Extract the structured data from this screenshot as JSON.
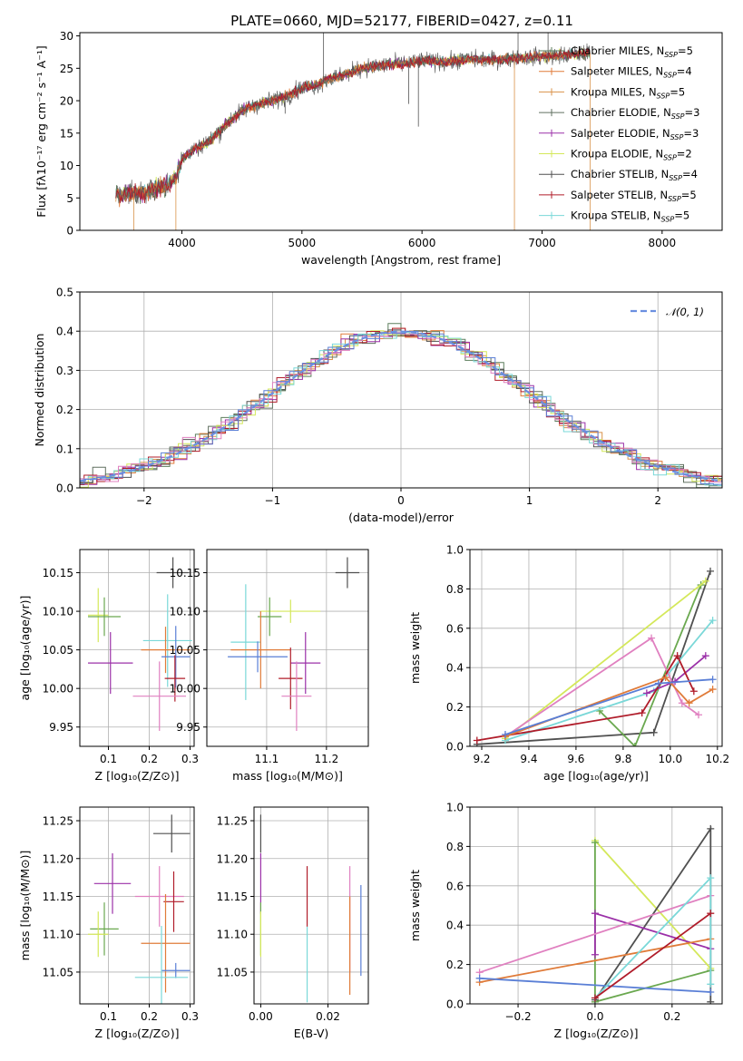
{
  "figure_title": "PLATE=0660, MJD=52177, FIBERID=0427, z=0.11",
  "colors": {
    "chabrier_miles": "#5d7f5d",
    "salpeter_miles": "#e07b39",
    "kroupa_miles": "#d9924a",
    "chabrier_elodie": "#607060",
    "salpeter_elodie": "#9b30a8",
    "kroupa_elodie": "#d4e85a",
    "chabrier_stelib": "#505050",
    "salpeter_stelib": "#b01c2a",
    "kroupa_stelib": "#7ad8d8",
    "pink": "#e080c0",
    "blue": "#5a7fd6",
    "green": "#6aa84f",
    "normal": "#6a8fe0"
  },
  "chart_data": [
    {
      "id": "spectrum",
      "type": "line",
      "title": "PLATE=0660, MJD=52177, FIBERID=0427, z=0.11",
      "xlabel": "wavelength [Angstrom, rest frame]",
      "ylabel": "Flux [fλ10⁻¹⁷ erg cm⁻² s⁻¹ A⁻¹]",
      "xlim": [
        3150,
        8500
      ],
      "ylim": [
        0,
        30.5
      ],
      "xticks": [
        4000,
        5000,
        6000,
        7000,
        8000
      ],
      "yticks": [
        0,
        5,
        10,
        15,
        20,
        25,
        30
      ],
      "legend_position": "right",
      "continuum": [
        [
          3450,
          5.6
        ],
        [
          3700,
          5.8
        ],
        [
          3850,
          6.8
        ],
        [
          3950,
          8
        ],
        [
          4000,
          11
        ],
        [
          4100,
          12.5
        ],
        [
          4250,
          14
        ],
        [
          4400,
          17
        ],
        [
          4550,
          19
        ],
        [
          4700,
          19.8
        ],
        [
          4850,
          20.5
        ],
        [
          5000,
          22
        ],
        [
          5100,
          22.2
        ],
        [
          5200,
          23.2
        ],
        [
          5350,
          24
        ],
        [
          5500,
          25
        ],
        [
          5700,
          25.5
        ],
        [
          5900,
          25.8
        ],
        [
          6000,
          26.2
        ],
        [
          6200,
          26
        ],
        [
          6400,
          26.4
        ],
        [
          6600,
          26.3
        ],
        [
          6800,
          26.6
        ],
        [
          7000,
          26.8
        ],
        [
          7200,
          27
        ],
        [
          7400,
          27.4
        ]
      ],
      "spikes": [
        [
          5180,
          30.5
        ],
        [
          6800,
          30.5
        ],
        [
          7050,
          30.5
        ],
        [
          6770,
          0
        ],
        [
          7400,
          0
        ],
        [
          5970,
          16
        ],
        [
          5890,
          19.5
        ],
        [
          4340,
          15
        ],
        [
          3950,
          0
        ],
        [
          3600,
          0
        ],
        [
          4200,
          14.5
        ],
        [
          4860,
          18
        ]
      ],
      "series": [
        {
          "name": "Chabrier MILES, N",
          "sub": "SSP",
          "suffix": "=5",
          "color_key": "chabrier_miles"
        },
        {
          "name": "Salpeter MILES, N",
          "sub": "SSP",
          "suffix": "=4",
          "color_key": "salpeter_miles"
        },
        {
          "name": "Kroupa MILES, N",
          "sub": "SSP",
          "suffix": "=5",
          "color_key": "kroupa_miles"
        },
        {
          "name": "Chabrier ELODIE, N",
          "sub": "SSP",
          "suffix": "=3",
          "color_key": "chabrier_elodie"
        },
        {
          "name": "Salpeter ELODIE, N",
          "sub": "SSP",
          "suffix": "=3",
          "color_key": "salpeter_elodie"
        },
        {
          "name": "Kroupa ELODIE, N",
          "sub": "SSP",
          "suffix": "=2",
          "color_key": "kroupa_elodie"
        },
        {
          "name": "Chabrier STELIB, N",
          "sub": "SSP",
          "suffix": "=4",
          "color_key": "chabrier_stelib"
        },
        {
          "name": "Salpeter STELIB, N",
          "sub": "SSP",
          "suffix": "=5",
          "color_key": "salpeter_stelib"
        },
        {
          "name": "Kroupa STELIB, N",
          "sub": "SSP",
          "suffix": "=5",
          "color_key": "kroupa_stelib"
        }
      ]
    },
    {
      "id": "residuals",
      "type": "line",
      "xlabel": "(data-model)/error",
      "ylabel": "Normed distribution",
      "xlim": [
        -2.5,
        2.5
      ],
      "ylim": [
        0,
        0.5
      ],
      "xticks": [
        -2,
        -1,
        0,
        1,
        2
      ],
      "yticks": [
        0.0,
        0.1,
        0.2,
        0.3,
        0.4,
        0.5
      ],
      "grid": true,
      "legend_position": "top-right",
      "legend_label": "𝒩(0, 1)",
      "bin_width": 0.1
    },
    {
      "id": "age_vs_Z",
      "type": "scatter",
      "xlabel": "Z [log₁₀(Z/Z⊙)]",
      "ylabel": "age  [log₁₀(age/yr)]",
      "xlim": [
        0.03,
        0.31
      ],
      "ylim": [
        9.925,
        10.18
      ],
      "xticks": [
        0.1,
        0.2,
        0.3
      ],
      "yticks": [
        9.95,
        10.0,
        10.05,
        10.1,
        10.15
      ],
      "grid": true,
      "points": [
        {
          "x": 0.258,
          "y": 10.15,
          "xerr": 0.04,
          "yerr": 0.02,
          "color_key": "chabrier_stelib"
        },
        {
          "x": 0.075,
          "y": 10.095,
          "xerr": 0.025,
          "yerr": 0.035,
          "color_key": "kroupa_elodie"
        },
        {
          "x": 0.09,
          "y": 10.093,
          "xerr": 0.04,
          "yerr": 0.025,
          "color_key": "green"
        },
        {
          "x": 0.105,
          "y": 10.033,
          "xerr": 0.055,
          "yerr": 0.04,
          "color_key": "salpeter_elodie"
        },
        {
          "x": 0.245,
          "y": 10.062,
          "xerr": 0.06,
          "yerr": 0.06,
          "color_key": "kroupa_stelib"
        },
        {
          "x": 0.24,
          "y": 10.05,
          "xerr": 0.06,
          "yerr": 0.03,
          "color_key": "salpeter_miles"
        },
        {
          "x": 0.265,
          "y": 10.041,
          "xerr": 0.035,
          "yerr": 0.04,
          "color_key": "blue"
        },
        {
          "x": 0.263,
          "y": 10.013,
          "xerr": 0.025,
          "yerr": 0.03,
          "color_key": "salpeter_stelib"
        },
        {
          "x": 0.225,
          "y": 9.99,
          "xerr": 0.065,
          "yerr": 0.045,
          "color_key": "pink"
        }
      ]
    },
    {
      "id": "age_vs_mass",
      "type": "scatter",
      "xlabel": "mass [log₁₀(M/M⊙)]",
      "ylabel": "",
      "xlim": [
        11.0,
        11.27
      ],
      "ylim": [
        9.925,
        10.18
      ],
      "xticks": [
        11.1,
        11.2
      ],
      "yticks": [
        9.95,
        10.0,
        10.05,
        10.1,
        10.15
      ],
      "grid": true,
      "points": [
        {
          "x": 11.235,
          "y": 10.15,
          "xerr": 0.02,
          "yerr": 0.02,
          "color_key": "chabrier_stelib"
        },
        {
          "x": 11.14,
          "y": 10.1,
          "xerr": 0.05,
          "yerr": 0.015,
          "color_key": "kroupa_elodie"
        },
        {
          "x": 11.105,
          "y": 10.093,
          "xerr": 0.02,
          "yerr": 0.025,
          "color_key": "green"
        },
        {
          "x": 11.065,
          "y": 10.06,
          "xerr": 0.025,
          "yerr": 0.075,
          "color_key": "kroupa_stelib"
        },
        {
          "x": 11.09,
          "y": 10.05,
          "xerr": 0.05,
          "yerr": 0.05,
          "color_key": "salpeter_miles"
        },
        {
          "x": 11.085,
          "y": 10.041,
          "xerr": 0.05,
          "yerr": 0.02,
          "color_key": "blue"
        },
        {
          "x": 11.165,
          "y": 10.033,
          "xerr": 0.025,
          "yerr": 0.04,
          "color_key": "salpeter_elodie"
        },
        {
          "x": 11.14,
          "y": 10.013,
          "xerr": 0.02,
          "yerr": 0.04,
          "color_key": "salpeter_stelib"
        },
        {
          "x": 11.15,
          "y": 9.99,
          "xerr": 0.025,
          "yerr": 0.045,
          "color_key": "pink"
        }
      ]
    },
    {
      "id": "weight_vs_age",
      "type": "line",
      "xlabel": "age  [log₁₀(age/yr)]",
      "ylabel": "mass weight",
      "xlim": [
        9.15,
        10.22
      ],
      "ylim": [
        0,
        1.0
      ],
      "xticks": [
        9.2,
        9.4,
        9.6,
        9.8,
        10.0,
        10.2
      ],
      "yticks": [
        0.0,
        0.2,
        0.4,
        0.6,
        0.8,
        1.0
      ],
      "grid": true,
      "series": [
        {
          "color_key": "chabrier_stelib",
          "x": [
            9.18,
            9.93,
            10.17
          ],
          "y": [
            0.01,
            0.07,
            0.89
          ]
        },
        {
          "color_key": "green",
          "x": [
            9.7,
            9.85,
            10.13
          ],
          "y": [
            0.18,
            0.0,
            0.82
          ]
        },
        {
          "color_key": "kroupa_elodie",
          "x": [
            9.3,
            10.15
          ],
          "y": [
            0.04,
            0.84
          ]
        },
        {
          "color_key": "kroupa_stelib",
          "x": [
            9.3,
            9.93,
            10.18
          ],
          "y": [
            0.03,
            0.28,
            0.64
          ]
        },
        {
          "color_key": "pink",
          "x": [
            9.3,
            9.92,
            10.05,
            10.12
          ],
          "y": [
            0.05,
            0.55,
            0.22,
            0.16
          ]
        },
        {
          "color_key": "salpeter_elodie",
          "x": [
            9.9,
            10.02,
            10.15
          ],
          "y": [
            0.27,
            0.33,
            0.46
          ]
        },
        {
          "color_key": "salpeter_stelib",
          "x": [
            9.18,
            9.88,
            10.03,
            10.1
          ],
          "y": [
            0.03,
            0.17,
            0.46,
            0.28
          ]
        },
        {
          "color_key": "salpeter_miles",
          "x": [
            9.3,
            9.98,
            10.08,
            10.18
          ],
          "y": [
            0.05,
            0.35,
            0.22,
            0.29
          ]
        },
        {
          "color_key": "blue",
          "x": [
            9.3,
            9.95,
            10.18
          ],
          "y": [
            0.06,
            0.32,
            0.34
          ]
        }
      ]
    },
    {
      "id": "mass_vs_Z",
      "type": "scatter",
      "xlabel": "Z [log₁₀(Z/Z⊙)]",
      "ylabel": "mass [log₁₀(M/M⊙)]",
      "xlim": [
        0.03,
        0.31
      ],
      "ylim": [
        11.008,
        11.268
      ],
      "xticks": [
        0.1,
        0.2,
        0.3
      ],
      "yticks": [
        11.05,
        11.1,
        11.15,
        11.2,
        11.25
      ],
      "grid": true,
      "points": [
        {
          "x": 0.255,
          "y": 11.233,
          "xerr": 0.045,
          "yerr": 0.025,
          "color_key": "chabrier_stelib"
        },
        {
          "x": 0.11,
          "y": 11.167,
          "xerr": 0.045,
          "yerr": 0.04,
          "color_key": "salpeter_elodie"
        },
        {
          "x": 0.09,
          "y": 11.107,
          "xerr": 0.035,
          "yerr": 0.035,
          "color_key": "green"
        },
        {
          "x": 0.075,
          "y": 11.1,
          "xerr": 0.025,
          "yerr": 0.03,
          "color_key": "kroupa_elodie"
        },
        {
          "x": 0.225,
          "y": 11.15,
          "xerr": 0.06,
          "yerr": 0.04,
          "color_key": "pink"
        },
        {
          "x": 0.26,
          "y": 11.143,
          "xerr": 0.025,
          "yerr": 0.04,
          "color_key": "salpeter_stelib"
        },
        {
          "x": 0.24,
          "y": 11.088,
          "xerr": 0.06,
          "yerr": 0.065,
          "color_key": "salpeter_miles"
        },
        {
          "x": 0.265,
          "y": 11.052,
          "xerr": 0.035,
          "yerr": 0.01,
          "color_key": "blue"
        },
        {
          "x": 0.23,
          "y": 11.043,
          "xerr": 0.065,
          "yerr": 0.068,
          "color_key": "kroupa_stelib"
        }
      ]
    },
    {
      "id": "mass_vs_EBV",
      "type": "scatter",
      "xlabel": "E(B-V)",
      "ylabel": "",
      "xlim": [
        -0.002,
        0.032
      ],
      "ylim": [
        11.008,
        11.268
      ],
      "xticks": [
        0.0,
        0.02
      ],
      "yticks": [
        11.05,
        11.1,
        11.15,
        11.2,
        11.25
      ],
      "grid": true,
      "points": [
        {
          "x": 0.0,
          "y": 11.233,
          "yerr": 0.025,
          "color_key": "chabrier_stelib"
        },
        {
          "x": 0.0,
          "y": 11.167,
          "yerr": 0.04,
          "color_key": "salpeter_elodie"
        },
        {
          "x": 0.0,
          "y": 11.107,
          "yerr": 0.035,
          "color_key": "green"
        },
        {
          "x": 0.0,
          "y": 11.1,
          "yerr": 0.03,
          "color_key": "kroupa_elodie"
        },
        {
          "x": 0.0138,
          "y": 11.15,
          "yerr": 0.04,
          "color_key": "salpeter_stelib"
        },
        {
          "x": 0.0138,
          "y": 11.06,
          "yerr": 0.05,
          "color_key": "kroupa_stelib"
        },
        {
          "x": 0.0265,
          "y": 11.12,
          "yerr": 0.07,
          "color_key": "pink"
        },
        {
          "x": 0.0265,
          "y": 11.085,
          "yerr": 0.065,
          "color_key": "salpeter_miles"
        },
        {
          "x": 0.0298,
          "y": 11.105,
          "yerr": 0.06,
          "color_key": "blue"
        }
      ]
    },
    {
      "id": "weight_vs_Z",
      "type": "line",
      "xlabel": "Z [log₁₀(Z/Z⊙)]",
      "ylabel": "mass weight",
      "xlim": [
        -0.325,
        0.33
      ],
      "ylim": [
        0,
        1.0
      ],
      "xticks": [
        -0.2,
        0.0,
        0.2
      ],
      "yticks": [
        0.0,
        0.2,
        0.4,
        0.6,
        0.8,
        1.0
      ],
      "grid": true,
      "series": [
        {
          "color_key": "kroupa_elodie",
          "x": [
            0.0,
            0.3
          ],
          "y": [
            0.83,
            0.18
          ]
        },
        {
          "color_key": "green",
          "x": [
            0.0,
            0.0,
            0.3
          ],
          "y": [
            0.82,
            0.01,
            0.17
          ]
        },
        {
          "color_key": "chabrier_stelib",
          "x": [
            0.0,
            0.3,
            0.3
          ],
          "y": [
            0.02,
            0.89,
            0.01
          ]
        },
        {
          "color_key": "salpeter_elodie",
          "x": [
            0.0,
            0.0,
            0.3
          ],
          "y": [
            0.25,
            0.46,
            0.28
          ]
        },
        {
          "color_key": "pink",
          "x": [
            -0.3,
            0.3
          ],
          "y": [
            0.16,
            0.55
          ]
        },
        {
          "color_key": "salpeter_miles",
          "x": [
            -0.3,
            0.3
          ],
          "y": [
            0.11,
            0.33
          ]
        },
        {
          "color_key": "blue",
          "x": [
            -0.3,
            0.3
          ],
          "y": [
            0.13,
            0.06
          ]
        },
        {
          "color_key": "kroupa_stelib",
          "x": [
            0.0,
            0.3,
            0.3
          ],
          "y": [
            0.03,
            0.64,
            0.1
          ]
        },
        {
          "color_key": "salpeter_stelib",
          "x": [
            0.0,
            0.3
          ],
          "y": [
            0.03,
            0.46
          ]
        }
      ]
    }
  ]
}
